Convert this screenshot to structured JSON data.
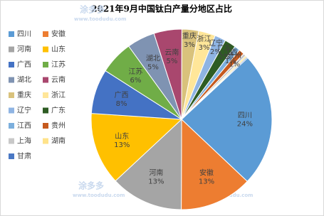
{
  "chart_data": {
    "type": "pie",
    "title": "2021年9月中国钛白产量分地区占比",
    "categories": [
      "四川",
      "安徽",
      "河南",
      "山东",
      "广西",
      "江苏",
      "湖北",
      "云南",
      "重庆",
      "浙江",
      "辽宁",
      "广东",
      "江西",
      "贵州",
      "上海",
      "湖南",
      "甘肃"
    ],
    "values": [
      24,
      13,
      13,
      13,
      8,
      6,
      5,
      5,
      3,
      3,
      2,
      2,
      1,
      1,
      0.5,
      0.3,
      0.2
    ],
    "value_labels": [
      "24%",
      "13%",
      "13%",
      "13%",
      "8%",
      "6%",
      "5%",
      "5%",
      "3%",
      "3%",
      "2%",
      "2%",
      "1%",
      "1%",
      null,
      null,
      null
    ],
    "colors": [
      "#5b9bd5",
      "#ed7d31",
      "#a5a5a5",
      "#ffc000",
      "#4472c4",
      "#70ad47",
      "#7f93b2",
      "#a9476e",
      "#d9c27c",
      "#ffe699",
      "#8fb4e3",
      "#2e5c23",
      "#7cafdd",
      "#c65a1e",
      "#c8c8c8",
      "#ffe38a",
      "#4a78c4"
    ],
    "legend": "left",
    "watermarks": [
      "涂多多",
      "www.toodudu.com"
    ]
  }
}
